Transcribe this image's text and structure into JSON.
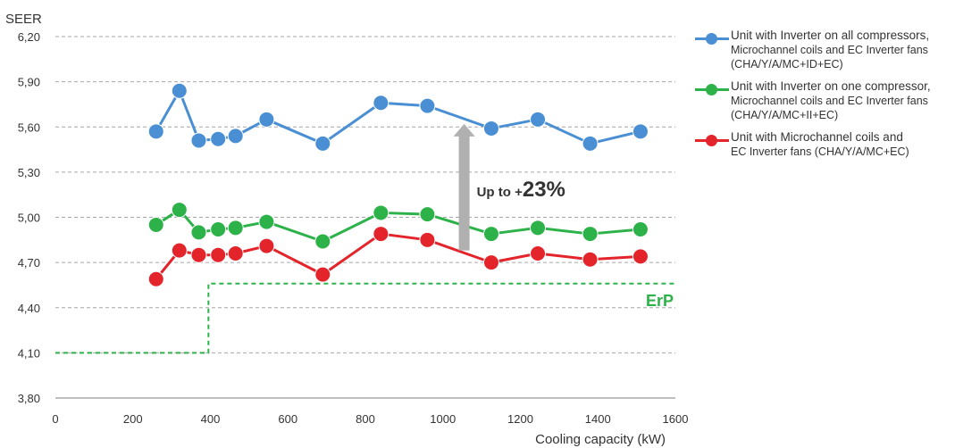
{
  "chart_data": {
    "type": "line",
    "title": "",
    "ylabel": "SEER",
    "xlabel": "Cooling capacity (kW)",
    "xlim": [
      0,
      1600
    ],
    "ylim": [
      3.8,
      6.2
    ],
    "x_ticks": [
      "0",
      "200",
      "400",
      "600",
      "800",
      "1000",
      "1200",
      "1400",
      "1600"
    ],
    "y_ticks": [
      "3,80",
      "4,10",
      "4,40",
      "4,70",
      "5,00",
      "5,30",
      "5,60",
      "5,90",
      "6,20"
    ],
    "grid": "horizontal-dashed",
    "legend_position": "right",
    "series": [
      {
        "name_lines": [
          "Unit with Inverter on all compressors,",
          "Microchannel coils and EC Inverter fans",
          "(CHA/Y/A/MC+ID+EC)"
        ],
        "color": "#4a8fd4",
        "x": [
          260,
          320,
          370,
          420,
          465,
          545,
          690,
          840,
          960,
          1125,
          1245,
          1380,
          1510
        ],
        "y": [
          5.57,
          5.84,
          5.51,
          5.52,
          5.54,
          5.65,
          5.49,
          5.76,
          5.74,
          5.59,
          5.65,
          5.49,
          5.57
        ]
      },
      {
        "name_lines": [
          "Unit with Inverter on one compressor,",
          "Microchannel coils and EC Inverter fans",
          "(CHA/Y/A/MC+II+EC)"
        ],
        "color": "#2db24a",
        "x": [
          260,
          320,
          370,
          420,
          465,
          545,
          690,
          840,
          960,
          1125,
          1245,
          1380,
          1510
        ],
        "y": [
          4.95,
          5.05,
          4.9,
          4.92,
          4.93,
          4.97,
          4.84,
          5.03,
          5.02,
          4.89,
          4.93,
          4.89,
          4.92
        ]
      },
      {
        "name_lines": [
          "Unit with Microchannel coils and",
          "EC Inverter fans (CHA/Y/A/MC+EC)"
        ],
        "color": "#e3242b",
        "x": [
          260,
          320,
          370,
          420,
          465,
          545,
          690,
          840,
          960,
          1125,
          1245,
          1380,
          1510
        ],
        "y": [
          4.59,
          4.78,
          4.75,
          4.75,
          4.76,
          4.81,
          4.62,
          4.89,
          4.85,
          4.7,
          4.76,
          4.72,
          4.74
        ]
      }
    ],
    "threshold": {
      "label": "ErP",
      "color": "#2db24a",
      "x": [
        0,
        395,
        395,
        1600
      ],
      "y": [
        4.1,
        4.1,
        4.56,
        4.56
      ]
    },
    "annotation": {
      "prefix": "Up to +",
      "value": "23%",
      "arrow_x": 1055,
      "arrow_from": 4.78,
      "arrow_to": 5.62,
      "color": "#b0b0b0"
    }
  }
}
